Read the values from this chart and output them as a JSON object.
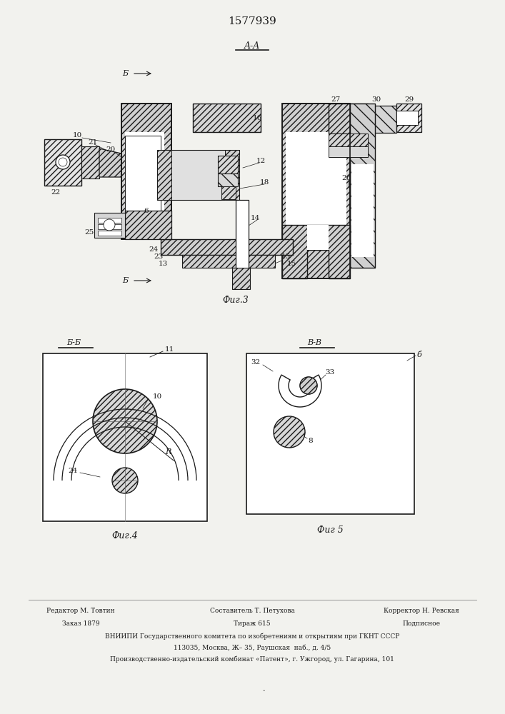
{
  "patent_number": "1577939",
  "bg": "#f2f2ee",
  "lc": "#1a1a1a",
  "fig3_caption": "Фиг.3",
  "fig4_caption": "Фиг.4",
  "fig5_caption": "Фиг 5",
  "footer": {
    "l1l": "Редактор М. Товтин",
    "l1c": "Составитель Т. Петухова",
    "l1r": "Корректор Н. Ревская",
    "l2l": "Заказ 1879",
    "l2c": "Тираж 615",
    "l2r": "Подписное",
    "l3": "ВНИИПИ Государственного комитета по изобретениям и открытиям при ГКНТ СССР",
    "l4": "113035, Москва, Ж– 35, Раушская  наб., д. 4/5",
    "l5": "Производственно-издательский комбинат «Патент», г. Ужгород, ул. Гагарина, 101"
  }
}
